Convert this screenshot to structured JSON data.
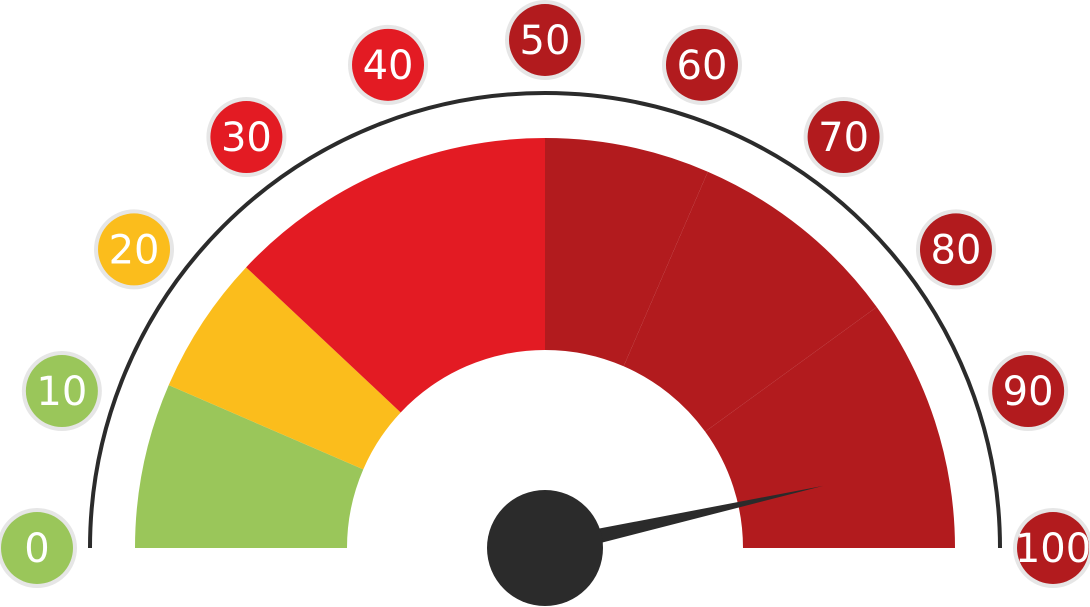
{
  "gauge": {
    "min": 0,
    "max": 100,
    "value": 93,
    "ticks": [
      {
        "label": "0",
        "value": 0,
        "color": "#9ac65a"
      },
      {
        "label": "10",
        "value": 10,
        "color": "#9ac65a"
      },
      {
        "label": "20",
        "value": 20,
        "color": "#fbbd1c"
      },
      {
        "label": "30",
        "value": 30,
        "color": "#e31b23"
      },
      {
        "label": "40",
        "value": 40,
        "color": "#e31b23"
      },
      {
        "label": "50",
        "value": 50,
        "color": "#b21b1e"
      },
      {
        "label": "60",
        "value": 60,
        "color": "#b21b1e"
      },
      {
        "label": "70",
        "value": 70,
        "color": "#b21b1e"
      },
      {
        "label": "80",
        "value": 80,
        "color": "#b21b1e"
      },
      {
        "label": "90",
        "value": 90,
        "color": "#b21b1e"
      },
      {
        "label": "100",
        "value": 100,
        "color": "#b21b1e"
      }
    ],
    "zones": [
      {
        "from": 0,
        "to": 13,
        "color": "#9ac65a"
      },
      {
        "from": 13,
        "to": 24,
        "color": "#fbbd1c"
      },
      {
        "from": 24,
        "to": 50,
        "color": "#e31b23"
      },
      {
        "from": 50,
        "to": 63,
        "color": "#b21b1e"
      },
      {
        "from": 63,
        "to": 80,
        "color": "#b21b1e"
      },
      {
        "from": 80,
        "to": 100,
        "color": "#b21b1e"
      }
    ],
    "outline_color": "#2b2b2b",
    "needle_color": "#2b2b2b",
    "badge_border_color": "#e6e6e6"
  }
}
